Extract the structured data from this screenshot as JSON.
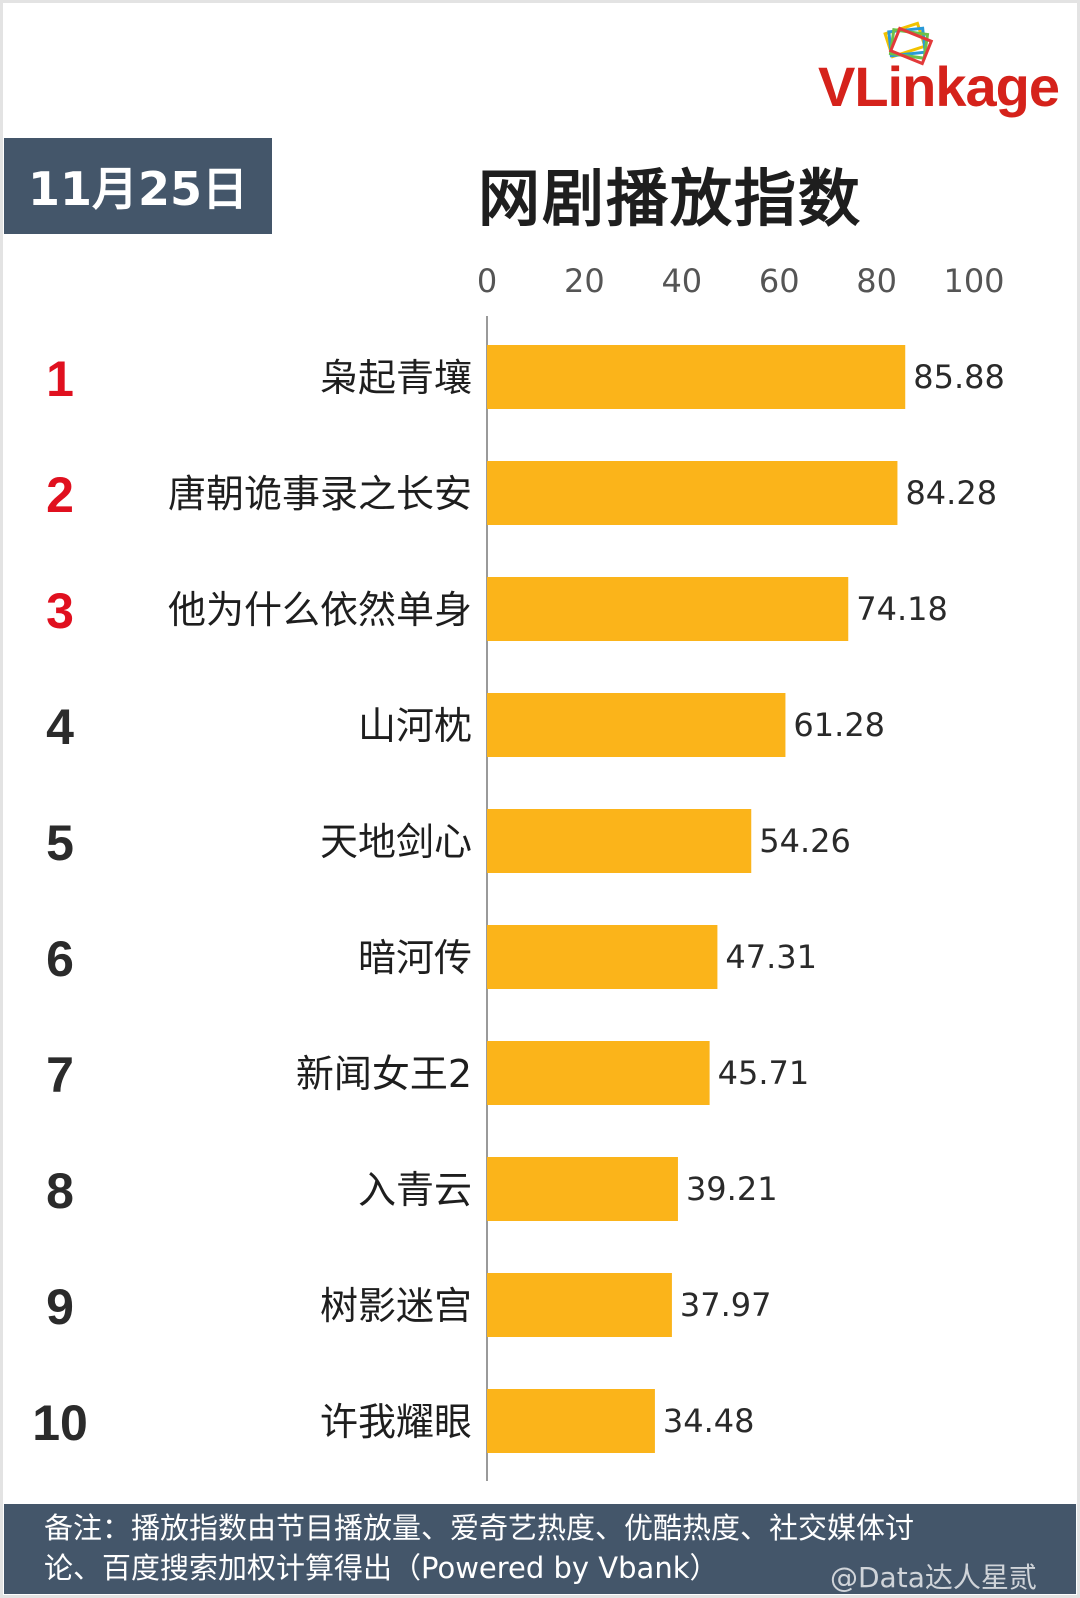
{
  "brand": {
    "logo_text": "VLinkage"
  },
  "header": {
    "date": "11月25日",
    "title": "网剧播放指数"
  },
  "footer": {
    "note_line1": "备注：播放指数由节目播放量、爱奇艺热度、优酷热度、社交媒体讨",
    "note_line2": "论、百度搜索加权计算得出（Powered by Vbank）"
  },
  "watermark": "@Data达人星贰",
  "colors": {
    "bar": "#fbb41a",
    "rank_top": "#e0101f",
    "rank_other": "#2b2b2b",
    "header_bg": "#44566a"
  },
  "chart_data": {
    "type": "bar",
    "orientation": "horizontal",
    "title": "网剧播放指数",
    "xlim": [
      0,
      100
    ],
    "xticks": [
      0,
      20,
      40,
      60,
      80,
      100
    ],
    "grid": false,
    "categories": [
      "枭起青壤",
      "唐朝诡事录之长安",
      "他为什么依然单身",
      "山河枕",
      "天地剑心",
      "暗河传",
      "新闻女王2",
      "入青云",
      "树影迷宫",
      "许我耀眼"
    ],
    "ranks": [
      "1",
      "2",
      "3",
      "4",
      "5",
      "6",
      "7",
      "8",
      "9",
      "10"
    ],
    "values": [
      85.88,
      84.28,
      74.18,
      61.28,
      54.26,
      47.31,
      45.71,
      39.21,
      37.97,
      34.48
    ],
    "value_labels": [
      "85.88",
      "84.28",
      "74.18",
      "61.28",
      "54.26",
      "47.31",
      "45.71",
      "39.21",
      "37.97",
      "34.48"
    ]
  }
}
